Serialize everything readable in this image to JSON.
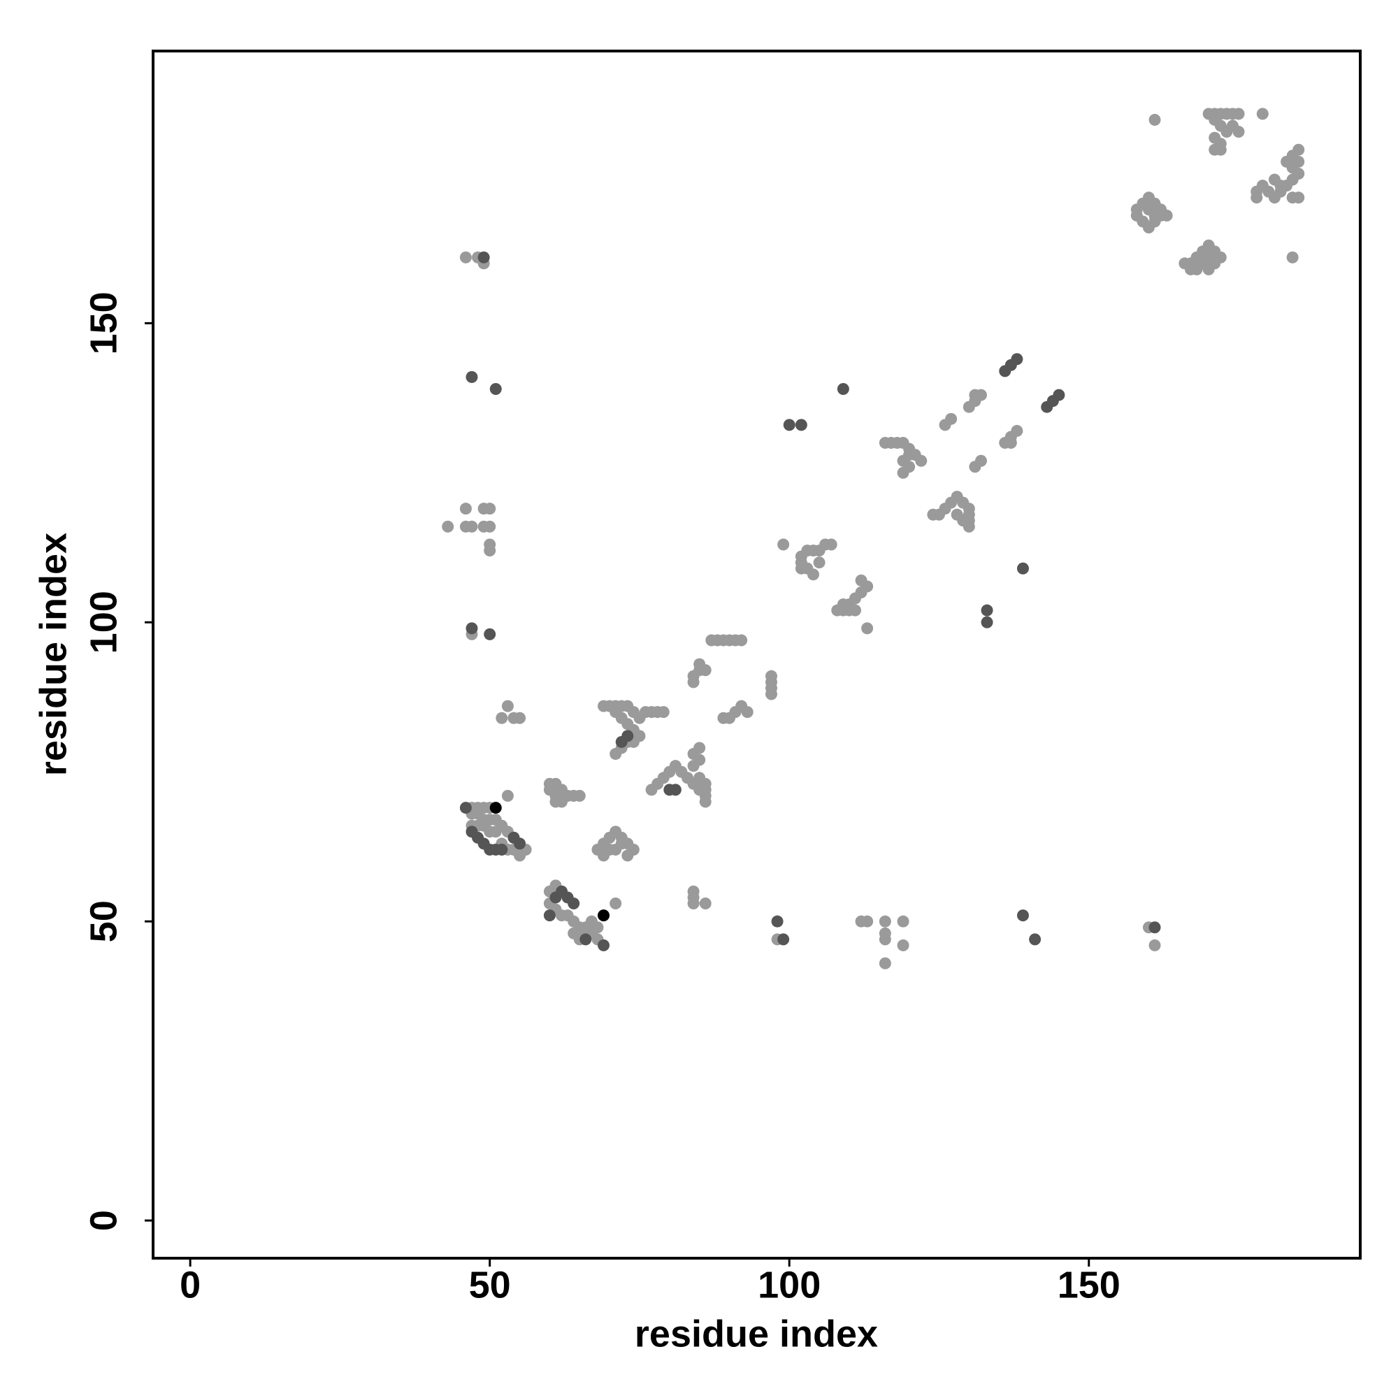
{
  "chart_data": {
    "type": "scatter",
    "xlabel": "residue index",
    "ylabel": "residue index",
    "xlim": [
      -6.2,
      195.3
    ],
    "ylim": [
      -6.3,
      195.5
    ],
    "xticks": [
      0,
      50,
      100,
      150
    ],
    "yticks": [
      0,
      50,
      100,
      150
    ],
    "series": [
      {
        "color": "#9a9a9a",
        "x": [
          161,
          170,
          171,
          172,
          173,
          174,
          175,
          179,
          171,
          172,
          173,
          174,
          175,
          171,
          172,
          171,
          172,
          178,
          179,
          180,
          181,
          182,
          183,
          184,
          185,
          184,
          185,
          184,
          185,
          183,
          184,
          185,
          181,
          182,
          178,
          184,
          158,
          159,
          160,
          161,
          162,
          163,
          158,
          159,
          160,
          161,
          162,
          160,
          161,
          166,
          167,
          168,
          169,
          170,
          171,
          172,
          169,
          170,
          171,
          168,
          167,
          170,
          130,
          131,
          132,
          131,
          126,
          127,
          136,
          137,
          138,
          137,
          132,
          131,
          116,
          117,
          118,
          119,
          120,
          121,
          122,
          119,
          120,
          119,
          120,
          124,
          125,
          126,
          127,
          128,
          129,
          130,
          130,
          130,
          130,
          128,
          129,
          99,
          102,
          103,
          104,
          105,
          106,
          107,
          102,
          103,
          104,
          102,
          105,
          108,
          109,
          110,
          111,
          112,
          113,
          112,
          110,
          111,
          109,
          113,
          87,
          88,
          89,
          90,
          91,
          92,
          84,
          85,
          86,
          85,
          84,
          97,
          97,
          97,
          97,
          89,
          90,
          91,
          92,
          93,
          69,
          70,
          71,
          72,
          73,
          74,
          75,
          76,
          77,
          78,
          79,
          71,
          72,
          73,
          74,
          75,
          73,
          72,
          71,
          74,
          77,
          78,
          79,
          80,
          81,
          82,
          83,
          84,
          85,
          86,
          84,
          85,
          84,
          85,
          86,
          86,
          86,
          85,
          60,
          61,
          62,
          63,
          64,
          65,
          60,
          61,
          62,
          61,
          68,
          69,
          70,
          71,
          72,
          73,
          74,
          70,
          71,
          72,
          69,
          73,
          52,
          53,
          54,
          55,
          53,
          47,
          48,
          49,
          50,
          47,
          48,
          49,
          50,
          51,
          47,
          48,
          49,
          50,
          51,
          52,
          53,
          54,
          55,
          56,
          52,
          53,
          54,
          55,
          60,
          61,
          62,
          60,
          61,
          62,
          63,
          64,
          65,
          66,
          67,
          68,
          66,
          67,
          68,
          64,
          65,
          71,
          98,
          112,
          113,
          116,
          116,
          116,
          116,
          119,
          119,
          160,
          161,
          84,
          84,
          86,
          84,
          46,
          48,
          49,
          43,
          46,
          46,
          47,
          49,
          50,
          49,
          50,
          50,
          50,
          47
        ],
        "values": [
          184,
          185,
          185,
          185,
          185,
          185,
          185,
          185,
          184,
          183,
          182,
          183,
          182,
          181,
          180,
          179,
          179,
          172,
          173,
          172,
          171,
          172,
          173,
          174,
          175,
          176,
          177,
          178,
          179,
          177,
          171,
          171,
          174,
          173,
          171,
          161,
          169,
          170,
          171,
          170,
          169,
          168,
          168,
          167,
          166,
          167,
          168,
          169,
          168,
          160,
          160,
          159,
          160,
          161,
          162,
          161,
          162,
          163,
          160,
          161,
          159,
          159,
          136,
          137,
          138,
          138,
          133,
          134,
          130,
          131,
          132,
          130,
          127,
          126,
          130,
          130,
          130,
          130,
          129,
          128,
          127,
          127,
          126,
          125,
          128,
          118,
          118,
          119,
          120,
          121,
          120,
          119,
          118,
          117,
          116,
          118,
          117,
          113,
          111,
          112,
          112,
          112,
          113,
          113,
          110,
          109,
          108,
          109,
          110,
          102,
          102,
          103,
          104,
          105,
          106,
          107,
          102,
          102,
          103,
          99,
          97,
          97,
          97,
          97,
          97,
          97,
          91,
          92,
          92,
          93,
          90,
          88,
          89,
          90,
          91,
          84,
          84,
          85,
          86,
          85,
          86,
          86,
          86,
          86,
          86,
          85,
          84,
          85,
          85,
          85,
          85,
          85,
          84,
          83,
          82,
          81,
          80,
          79,
          78,
          80,
          72,
          73,
          74,
          75,
          76,
          75,
          74,
          73,
          74,
          73,
          76,
          77,
          78,
          79,
          71,
          70,
          72,
          72,
          73,
          73,
          72,
          71,
          71,
          71,
          72,
          71,
          70,
          70,
          62,
          63,
          64,
          65,
          64,
          63,
          62,
          62,
          62,
          63,
          61,
          61,
          84,
          86,
          84,
          84,
          71,
          69,
          69,
          69,
          69,
          68,
          68,
          67,
          67,
          67,
          66,
          66,
          66,
          65,
          65,
          66,
          65,
          64,
          63,
          62,
          63,
          62,
          62,
          61,
          55,
          56,
          55,
          53,
          52,
          51,
          51,
          50,
          49,
          49,
          50,
          49,
          48,
          48,
          47,
          48,
          47,
          53,
          47,
          50,
          50,
          50,
          48,
          47,
          43,
          50,
          46,
          49,
          46,
          55,
          53,
          53,
          54,
          161,
          161,
          160,
          116,
          116,
          119,
          116,
          116,
          116,
          119,
          119,
          113,
          112,
          98
        ]
      },
      {
        "color": "#555555",
        "x": [
          136,
          137,
          138,
          143,
          144,
          145,
          100,
          102,
          109,
          133,
          133,
          139,
          72,
          73,
          80,
          81,
          46,
          47,
          54,
          55,
          51,
          52,
          60,
          61,
          62,
          63,
          64,
          66,
          69,
          98,
          99,
          139,
          141,
          161,
          49,
          47,
          51,
          47,
          50,
          48,
          49,
          50
        ],
        "values": [
          142,
          143,
          144,
          136,
          137,
          138,
          133,
          133,
          139,
          102,
          100,
          109,
          80,
          81,
          72,
          72,
          69,
          65,
          64,
          63,
          62,
          62,
          51,
          54,
          55,
          54,
          53,
          47,
          46,
          50,
          47,
          51,
          47,
          49,
          161,
          141,
          139,
          99,
          98,
          64,
          63,
          62
        ]
      },
      {
        "color": "#000000",
        "x": [
          51,
          69
        ],
        "values": [
          69,
          51
        ]
      }
    ]
  }
}
